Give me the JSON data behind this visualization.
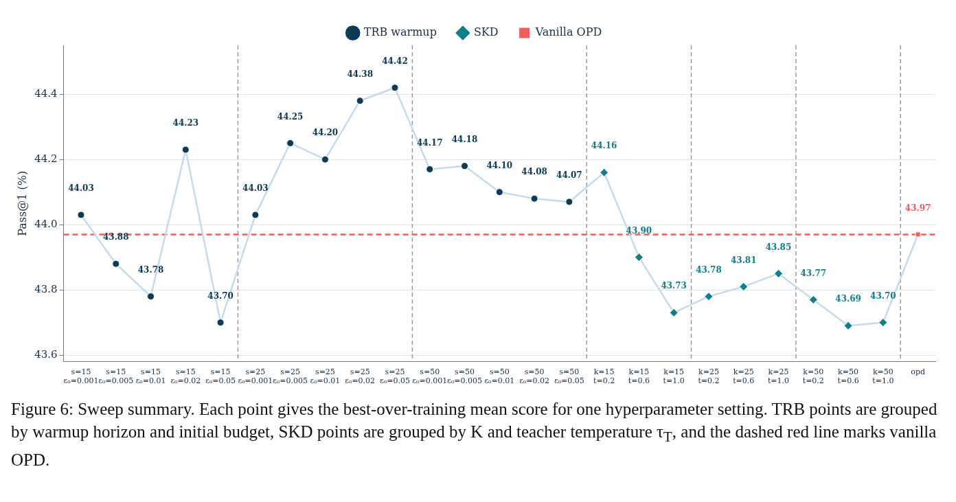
{
  "chart_data": {
    "type": "line",
    "ylabel": "Pass@1 (%)",
    "categories": [
      "s=15\nε₀=0.001",
      "s=15\nε₀=0.005",
      "s=15\nε₀=0.01",
      "s=15\nε₀=0.02",
      "s=15\nε₀=0.05",
      "s=25\nε₀=0.001",
      "s=25\nε₀=0.005",
      "s=25\nε₀=0.01",
      "s=25\nε₀=0.02",
      "s=25\nε₀=0.05",
      "s=50\nε₀=0.001",
      "s=50\nε₀=0.005",
      "s=50\nε₀=0.01",
      "s=50\nε₀=0.02",
      "s=50\nε₀=0.05",
      "k=15\nt=0.2",
      "k=15\nt=0.6",
      "k=15\nt=1.0",
      "k=25\nt=0.2",
      "k=25\nt=0.6",
      "k=25\nt=1.0",
      "k=50\nt=0.2",
      "k=50\nt=0.6",
      "k=50\nt=1.0",
      "opd"
    ],
    "series": [
      {
        "type": "line",
        "marker": "none",
        "color": "#c3dbeb",
        "values": [
          44.03,
          43.88,
          43.78,
          44.23,
          43.7,
          44.03,
          44.25,
          44.2,
          44.38,
          44.42,
          44.17,
          44.18,
          44.1,
          44.08,
          44.07,
          44.16,
          43.9,
          43.73,
          43.78,
          43.81,
          43.85,
          43.77,
          43.69,
          43.7,
          43.97
        ]
      },
      {
        "type": "scatter",
        "name": "TRB warmup",
        "marker": "circle",
        "color": "#0d3b56",
        "values": [
          44.03,
          43.88,
          43.78,
          44.23,
          43.7,
          44.03,
          44.25,
          44.2,
          44.38,
          44.42,
          44.17,
          44.18,
          44.1,
          44.08,
          44.07,
          null,
          null,
          null,
          null,
          null,
          null,
          null,
          null,
          null,
          null
        ],
        "value_labels": [
          "44.03",
          "43.88",
          "43.78",
          "44.23",
          "43.70",
          "44.03",
          "44.25",
          "44.20",
          "44.38",
          "44.42",
          "44.17",
          "44.18",
          "44.10",
          "44.08",
          "44.07",
          null,
          null,
          null,
          null,
          null,
          null,
          null,
          null,
          null,
          null
        ]
      },
      {
        "type": "scatter",
        "name": "SKD",
        "marker": "diamond",
        "color": "#0f7f8c",
        "values": [
          null,
          null,
          null,
          null,
          null,
          null,
          null,
          null,
          null,
          null,
          null,
          null,
          null,
          null,
          null,
          44.16,
          43.9,
          43.73,
          43.78,
          43.81,
          43.85,
          43.77,
          43.69,
          43.7,
          null
        ],
        "value_labels": [
          null,
          null,
          null,
          null,
          null,
          null,
          null,
          null,
          null,
          null,
          null,
          null,
          null,
          null,
          null,
          "44.16",
          "43.90",
          "43.73",
          "43.78",
          "43.81",
          "43.85",
          "43.77",
          "43.69",
          "43.70",
          null
        ]
      },
      {
        "type": "scatter",
        "name": "Vanilla OPD",
        "marker": "square",
        "color": "#f25c5c",
        "values": [
          null,
          null,
          null,
          null,
          null,
          null,
          null,
          null,
          null,
          null,
          null,
          null,
          null,
          null,
          null,
          null,
          null,
          null,
          null,
          null,
          null,
          null,
          null,
          null,
          43.97
        ],
        "value_labels": [
          null,
          null,
          null,
          null,
          null,
          null,
          null,
          null,
          null,
          null,
          null,
          null,
          null,
          null,
          null,
          null,
          null,
          null,
          null,
          null,
          null,
          null,
          null,
          null,
          "43.97"
        ]
      }
    ],
    "ylim": [
      43.58,
      44.55
    ],
    "yticks": [
      {
        "value": 43.6,
        "label": "43.6"
      },
      {
        "value": 43.8,
        "label": "43.8"
      },
      {
        "value": 44,
        "label": "44.0"
      },
      {
        "value": 44.2,
        "label": "44.2"
      },
      {
        "value": 44.4,
        "label": "44.4"
      }
    ],
    "grid": "y",
    "legend": "top",
    "ref_lines": [
      {
        "axis": "y",
        "value": 43.97,
        "color": "#f25c5c",
        "line_style": "dashed"
      }
    ],
    "annotations": [
      "Figure 6: Sweep summary. Each point gives the best-over-training mean score for one hyperparameter setting. TRB points are grouped by warmup horizon and initial budget, SKD points are grouped by K and teacher temperature τ$_{T}$, and the dashed red line marks vanilla OPD."
    ]
  }
}
